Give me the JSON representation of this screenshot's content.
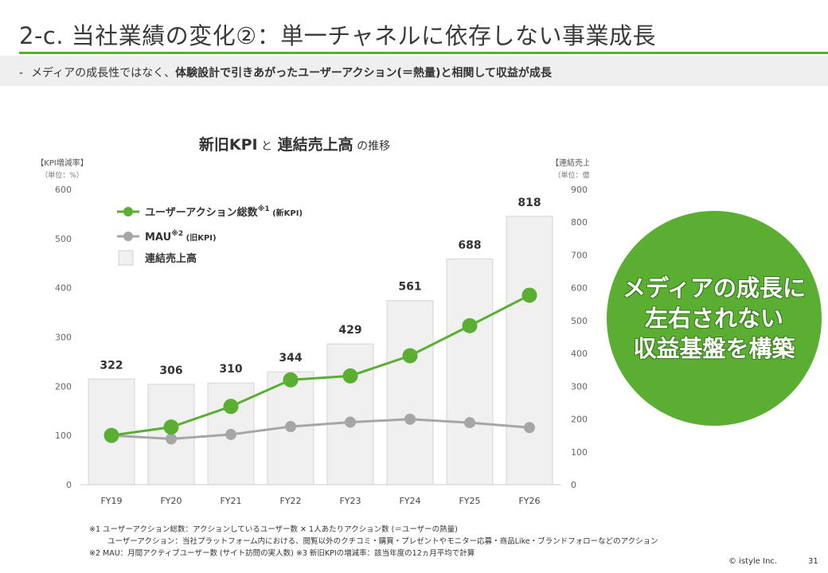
{
  "header": {
    "title": "2-c. 当社業績の変化②：単一チャネルに依存しない事業成長",
    "subtitle_dash": "-",
    "subtitle_plain": "メディアの成長性ではなく、",
    "subtitle_bold": "体験設計で引きあがったユーザーアクション(＝熱量)と相関して収益が成長"
  },
  "chart_data": {
    "type": "bar",
    "title_parts": [
      "新旧KPI",
      "と",
      "連結売上高",
      "の推移"
    ],
    "categories": [
      "FY19",
      "FY20",
      "FY21",
      "FY22",
      "FY23",
      "FY24",
      "FY25",
      "FY26"
    ],
    "left_axis": {
      "label_line1": "【KPI増減率】",
      "label_line2": "（単位：%）",
      "ticks": [
        "0",
        "100",
        "200",
        "300",
        "400",
        "500",
        "600"
      ],
      "ylim": [
        0,
        600
      ]
    },
    "right_axis": {
      "label_line1": "【連結売上高】",
      "label_line2": "（単位：億円）",
      "ticks": [
        "0",
        "100",
        "200",
        "300",
        "400",
        "500",
        "600",
        "700",
        "800",
        "900"
      ],
      "ylim": [
        0,
        900
      ]
    },
    "series": [
      {
        "name": "連結売上高",
        "kind": "bar",
        "axis": "right",
        "color": "#f0f0f0",
        "values": [
          322,
          306,
          310,
          344,
          429,
          561,
          688,
          818
        ],
        "labels": [
          "322",
          "306",
          "310",
          "344",
          "429",
          "561",
          "688",
          "818"
        ]
      },
      {
        "name": "ユーザーアクション総数",
        "kind": "line",
        "axis": "left",
        "color": "#5aae32",
        "values": [
          100,
          117,
          159,
          213,
          221,
          262,
          323,
          385
        ]
      },
      {
        "name": "MAU",
        "kind": "line",
        "axis": "left",
        "color": "#a6a6a6",
        "values": [
          100,
          93,
          102,
          118,
          127,
          133,
          126,
          116
        ]
      }
    ],
    "legend": [
      {
        "label": "ユーザーアクション総数",
        "sup": "※1",
        "suffix": "(新KPI)",
        "color": "#5aae32",
        "kind": "line"
      },
      {
        "label": "MAU",
        "sup": "※2",
        "suffix": "(旧KPI)",
        "color": "#a6a6a6",
        "kind": "line"
      },
      {
        "label": "連結売上高",
        "sup": "",
        "suffix": "",
        "color": "#f0f0f0",
        "kind": "bar"
      }
    ],
    "legend_position": "top-left"
  },
  "callout": {
    "lines": [
      "メディアの成長に",
      "左右されない",
      "収益基盤を構築"
    ],
    "color": "#5aae32"
  },
  "footnotes": {
    "line1": "※1  ユーザーアクション総数：アクションしているユーザー数 ✕ 1人あたりアクション数 (＝ユーザーの熱量)",
    "line2": "ユーザーアクション：当社プラットフォーム内における、閲覧以外のクチコミ・購買・プレゼントやモニター応募・商品Like・ブランドフォローなどのアクション",
    "line3": "※2  MAU：月間アクティブユーザー数 (サイト訪問の実人数)  ※3  新旧KPIの増減率：該当年度の12ヵ月平均で計算"
  },
  "footer": {
    "copyright": "© istyle Inc.",
    "page": "31"
  }
}
